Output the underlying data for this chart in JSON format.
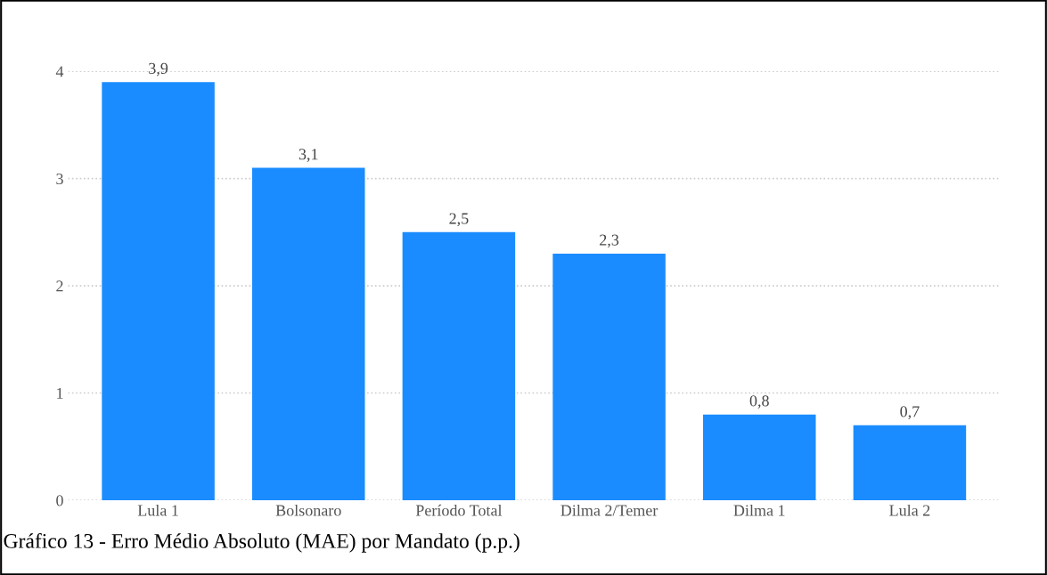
{
  "chart_data": {
    "type": "bar",
    "categories": [
      "Lula 1",
      "Bolsonaro",
      "Período Total",
      "Dilma 2/Temer",
      "Dilma 1",
      "Lula 2"
    ],
    "values": [
      3.9,
      3.1,
      2.5,
      2.3,
      0.8,
      0.7
    ],
    "value_labels": [
      "3,9",
      "3,1",
      "2,5",
      "2,3",
      "0,8",
      "0,7"
    ],
    "color": "#1a8cff",
    "ylim": [
      0,
      4
    ],
    "yticks": [
      0,
      1,
      2,
      3,
      4
    ],
    "grid": "y",
    "annotations": [
      "Gráfico 13 - Erro Médio Absoluto (MAE) por Mandato (p.p.)"
    ]
  }
}
